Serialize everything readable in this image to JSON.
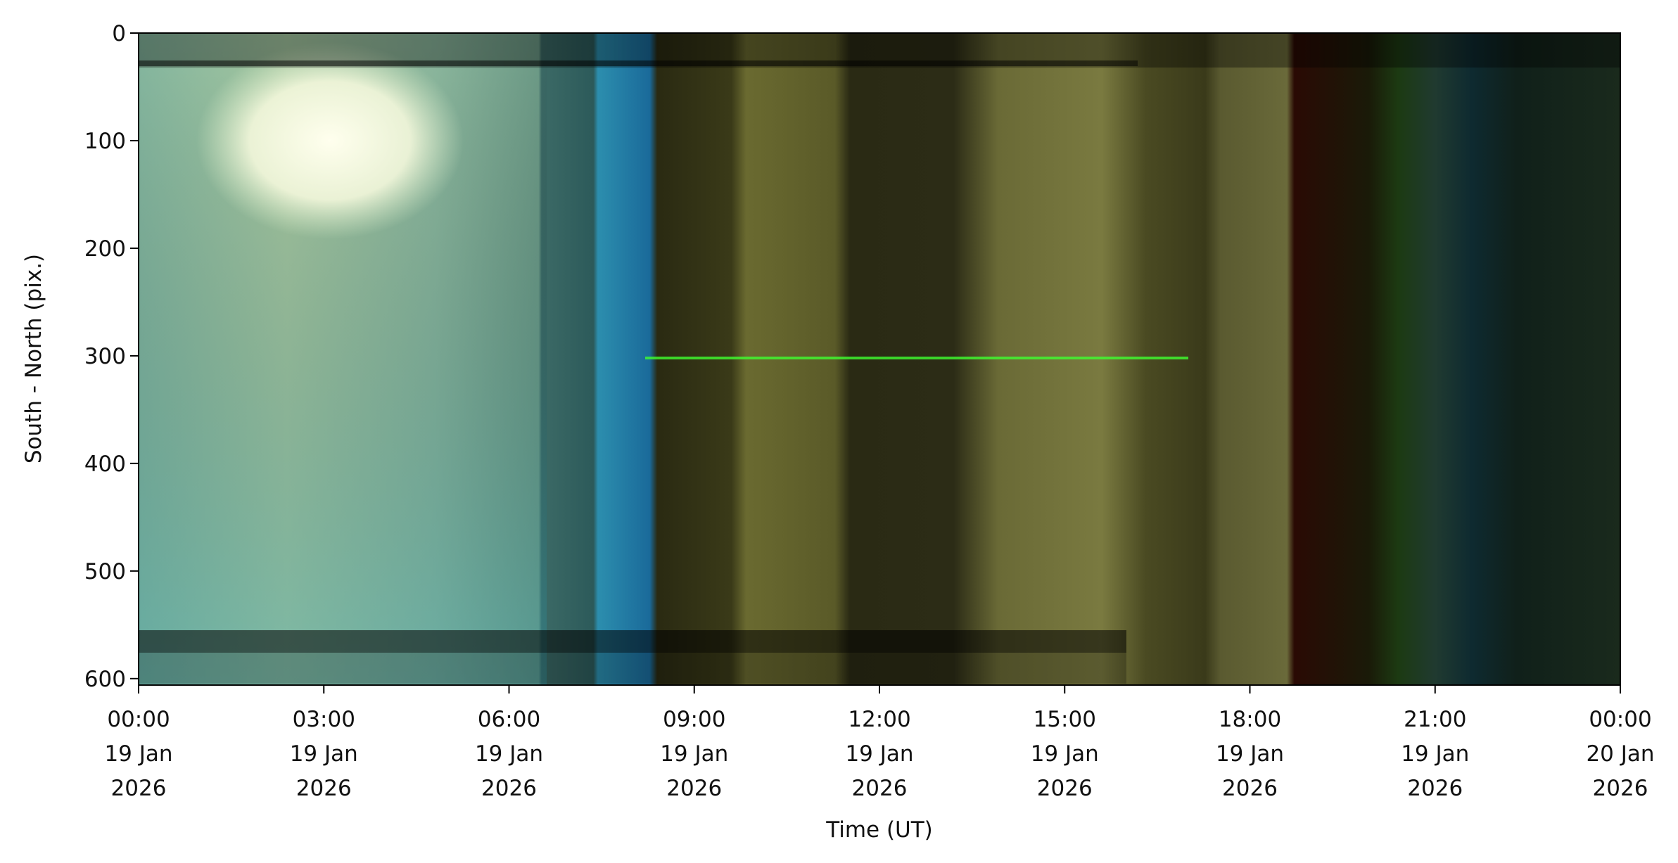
{
  "chart_data": {
    "type": "keogram",
    "xlabel": "Time (UT)",
    "ylabel": "South - North (pix.)",
    "xlim": [
      0,
      24
    ],
    "xticks": [
      {
        "value": 0,
        "label": "00:00\n19 Jan\n2026"
      },
      {
        "value": 3,
        "label": "03:00\n19 Jan\n2026"
      },
      {
        "value": 6,
        "label": "06:00\n19 Jan\n2026"
      },
      {
        "value": 9,
        "label": "09:00\n19 Jan\n2026"
      },
      {
        "value": 12,
        "label": "12:00\n19 Jan\n2026"
      },
      {
        "value": 15,
        "label": "15:00\n19 Jan\n2026"
      },
      {
        "value": 18,
        "label": "18:00\n19 Jan\n2026"
      },
      {
        "value": 21,
        "label": "21:00\n19 Jan\n2026"
      },
      {
        "value": 24,
        "label": "00:00\n20 Jan\n2026"
      }
    ],
    "ylim": [
      606,
      0
    ],
    "yticks": [
      0,
      100,
      200,
      300,
      400,
      500,
      600
    ]
  }
}
